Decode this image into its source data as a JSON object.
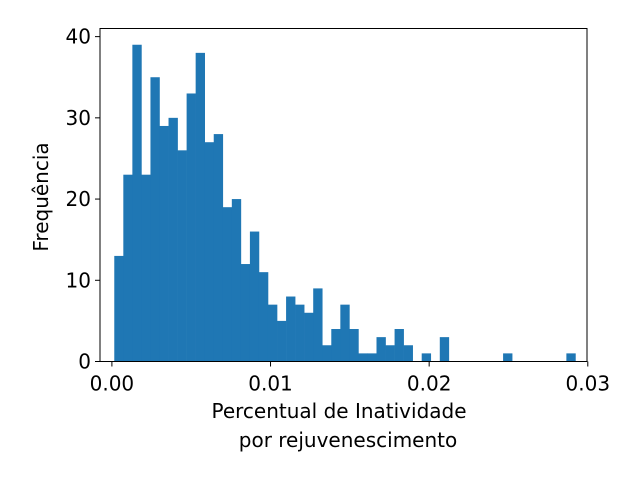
{
  "chart_data": {
    "type": "bar",
    "subtype": "histogram",
    "bar_color": "#1f77b4",
    "xlabel_lines": [
      "Percentual de Inatividade",
      "por rejuvenescimento"
    ],
    "ylabel": "Frequência",
    "xlim": [
      -0.00075,
      0.02995
    ],
    "ylim": [
      0,
      41
    ],
    "grid": false,
    "x_ticks": [
      {
        "value": 0.0,
        "label": "0.00"
      },
      {
        "value": 0.01,
        "label": "0.01"
      },
      {
        "value": 0.02,
        "label": "0.02"
      },
      {
        "value": 0.03,
        "label": "0.03"
      }
    ],
    "y_ticks": [
      {
        "value": 0,
        "label": "0"
      },
      {
        "value": 10,
        "label": "10"
      },
      {
        "value": 20,
        "label": "20"
      },
      {
        "value": 30,
        "label": "30"
      },
      {
        "value": 40,
        "label": "40"
      }
    ],
    "bin_start": 0.00015,
    "bin_width": 0.00057,
    "counts": [
      13,
      23,
      39,
      23,
      35,
      29,
      30,
      26,
      33,
      38,
      27,
      28,
      19,
      20,
      12,
      16,
      11,
      7,
      5,
      8,
      7,
      6,
      9,
      2,
      4,
      7,
      4,
      1,
      1,
      3,
      2,
      4,
      2,
      0,
      1,
      0,
      3,
      0,
      0,
      0,
      0,
      0,
      0,
      1,
      0,
      0,
      0,
      0,
      0,
      0,
      1
    ]
  }
}
